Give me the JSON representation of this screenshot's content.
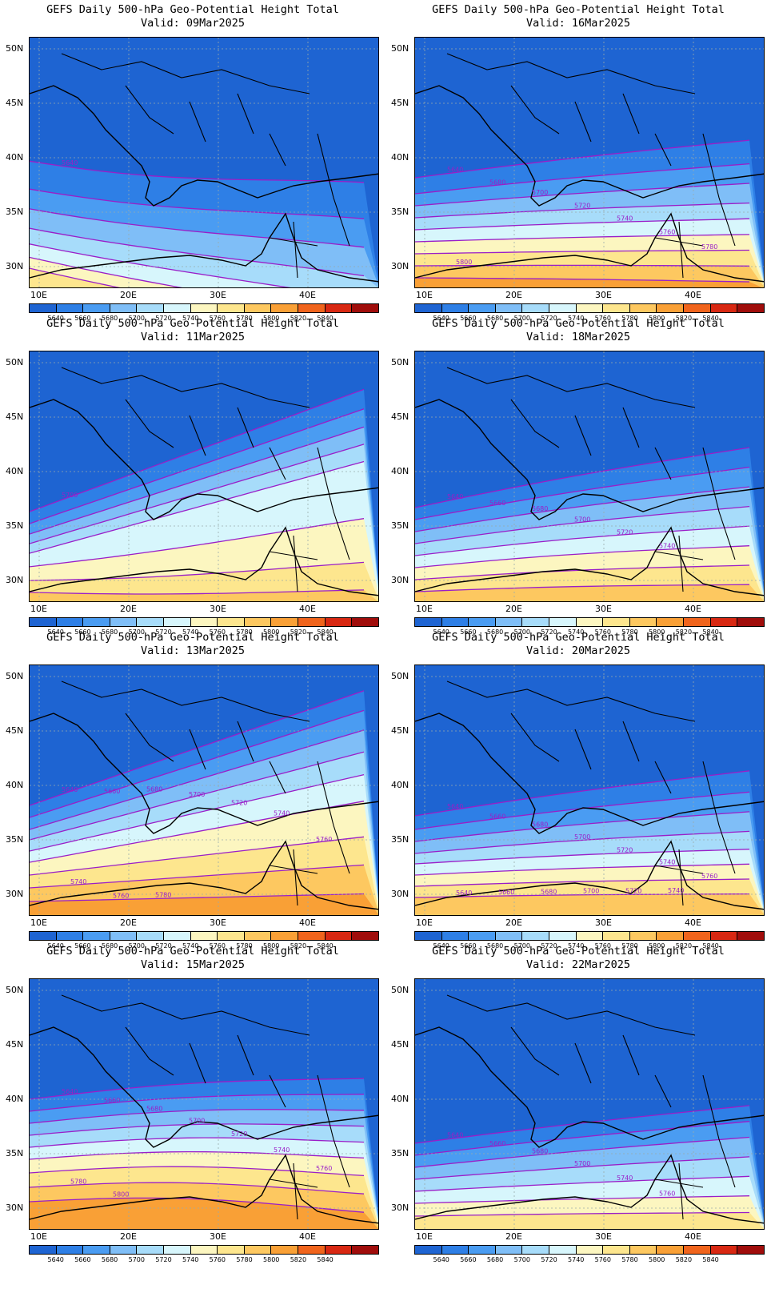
{
  "figure": {
    "title_line1": "GEFS Daily 500-hPa Geo-Potential Height Total",
    "lat_labels": [
      "50N",
      "45N",
      "40N",
      "35N",
      "30N"
    ],
    "lon_labels": [
      "10E",
      "20E",
      "30E",
      "40E"
    ],
    "colorbar_values": [
      "5640",
      "5660",
      "5680",
      "5700",
      "5720",
      "5740",
      "5760",
      "5780",
      "5800",
      "5820",
      "5840"
    ],
    "colorbar_colors": [
      "#1e64d2",
      "#2e7fe6",
      "#4a9cf2",
      "#7fbef7",
      "#a7dcfa",
      "#d7f6fc",
      "#fcf6c0",
      "#fde68e",
      "#fdc860",
      "#f9a036",
      "#f0641c",
      "#d82812",
      "#a00d0b"
    ]
  },
  "panels": [
    {
      "valid": "Valid: 09Mar2025",
      "contour_labels": [
        "5640"
      ]
    },
    {
      "valid": "Valid: 16Mar2025",
      "contour_labels": [
        "5640",
        "5680",
        "5700",
        "5720",
        "5740",
        "5760",
        "5780",
        "5800"
      ]
    },
    {
      "valid": "Valid: 11Mar2025",
      "contour_labels": [
        "5700"
      ]
    },
    {
      "valid": "Valid: 18Mar2025",
      "contour_labels": [
        "5640",
        "5660",
        "5680",
        "5700",
        "5720",
        "5740"
      ]
    },
    {
      "valid": "Valid: 13Mar2025",
      "contour_labels": [
        "5640",
        "5660",
        "5680",
        "5700",
        "5720",
        "5740",
        "5760",
        "5740",
        "5760",
        "5780"
      ]
    },
    {
      "valid": "Valid: 20Mar2025",
      "contour_labels": [
        "5640",
        "5660",
        "5680",
        "5700",
        "5720",
        "5740",
        "5760",
        "5640",
        "5660",
        "5680",
        "5700",
        "5720",
        "5740"
      ]
    },
    {
      "valid": "Valid: 15Mar2025",
      "contour_labels": [
        "5640",
        "5660",
        "5680",
        "5700",
        "5720",
        "5740",
        "5760",
        "5780",
        "5800"
      ]
    },
    {
      "valid": "Valid: 22Mar2025",
      "contour_labels": [
        "5640",
        "5660",
        "5680",
        "5700",
        "5740",
        "5760"
      ]
    }
  ]
}
